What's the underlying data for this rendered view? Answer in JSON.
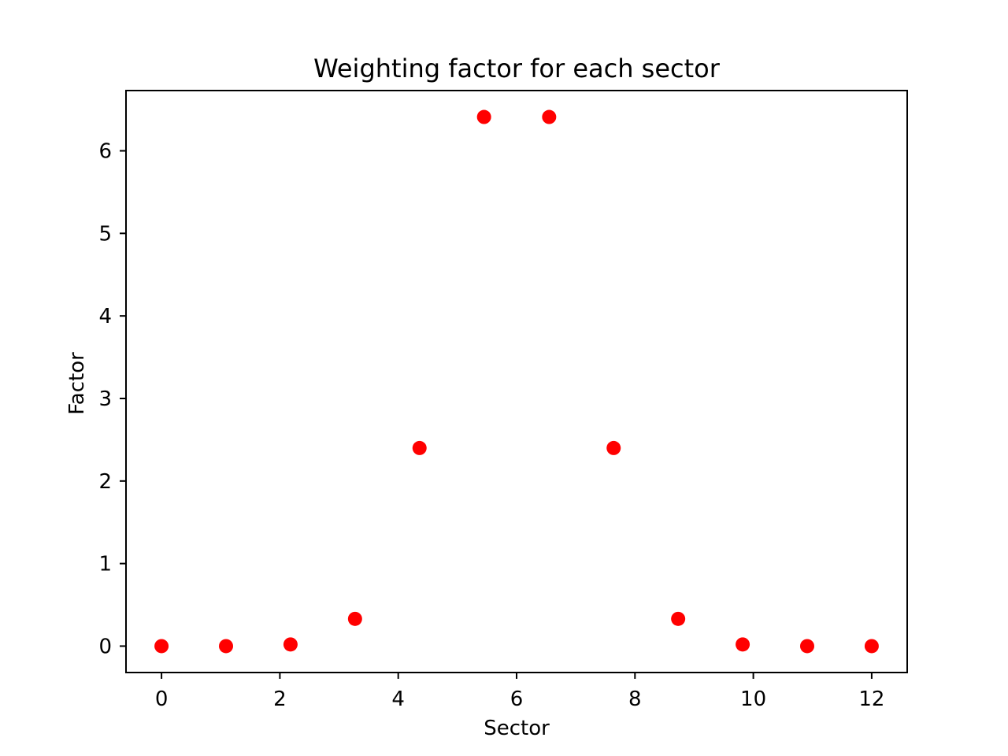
{
  "chart_data": {
    "type": "scatter",
    "title": "Weighting factor for each sector",
    "xlabel": "Sector",
    "ylabel": "Factor",
    "xlim": [
      -0.6,
      12.6
    ],
    "ylim": [
      -0.32,
      6.73
    ],
    "xticks": [
      0,
      2,
      4,
      6,
      8,
      10,
      12
    ],
    "yticks": [
      0,
      1,
      2,
      3,
      4,
      5,
      6
    ],
    "grid": false,
    "marker_color": "#ff0000",
    "series": [
      {
        "x": [
          0,
          1.09,
          2.18,
          3.27,
          4.36,
          5.45,
          6.55,
          7.64,
          8.73,
          9.82,
          10.91,
          12
        ],
        "y": [
          0.0,
          0.0,
          0.02,
          0.33,
          2.4,
          6.41,
          6.41,
          2.4,
          0.33,
          0.02,
          0.0,
          0.0
        ]
      }
    ]
  }
}
